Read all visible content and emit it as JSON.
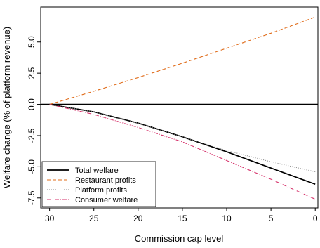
{
  "chart_data": {
    "type": "line",
    "title": "",
    "xlabel": "Commission cap level",
    "ylabel": "Welfare change (% of platform revenue)",
    "xlim": [
      31,
      -0.3
    ],
    "ylim": [
      -8.3,
      7.8
    ],
    "x_reversed": true,
    "x_ticks": [
      30,
      25,
      20,
      15,
      10,
      5,
      0
    ],
    "y_ticks": [
      -7.5,
      -5.0,
      -2.5,
      0.0,
      2.5,
      5.0
    ],
    "x_tick_labels": [
      "30",
      "25",
      "20",
      "15",
      "10",
      "5",
      "0"
    ],
    "y_tick_labels": [
      "-7.5",
      "-5.0",
      "-2.5",
      "0.0",
      "2.5",
      "5.0"
    ],
    "grid": false,
    "reference_line_y": 0,
    "legend_position": "bottom-left",
    "x": [
      30,
      25,
      20,
      15,
      10,
      5,
      0
    ],
    "series": [
      {
        "name": "Total welfare",
        "color": "#000000",
        "dash": "solid",
        "values": [
          0,
          -0.6,
          -1.5,
          -2.6,
          -3.8,
          -5.1,
          -6.4
        ]
      },
      {
        "name": "Restaurant profits",
        "color": "#e06c1a",
        "dash": "dashed",
        "values": [
          0,
          1.05,
          2.15,
          3.3,
          4.5,
          5.7,
          7.0
        ]
      },
      {
        "name": "Platform profits",
        "color": "#888888",
        "dash": "dotted",
        "values": [
          0,
          -0.6,
          -1.5,
          -2.6,
          -3.7,
          -4.6,
          -5.4
        ]
      },
      {
        "name": "Consumer welfare",
        "color": "#d6336c",
        "dash": "dashdot",
        "values": [
          0,
          -0.8,
          -1.85,
          -3.0,
          -4.5,
          -6.0,
          -7.6
        ]
      }
    ]
  }
}
